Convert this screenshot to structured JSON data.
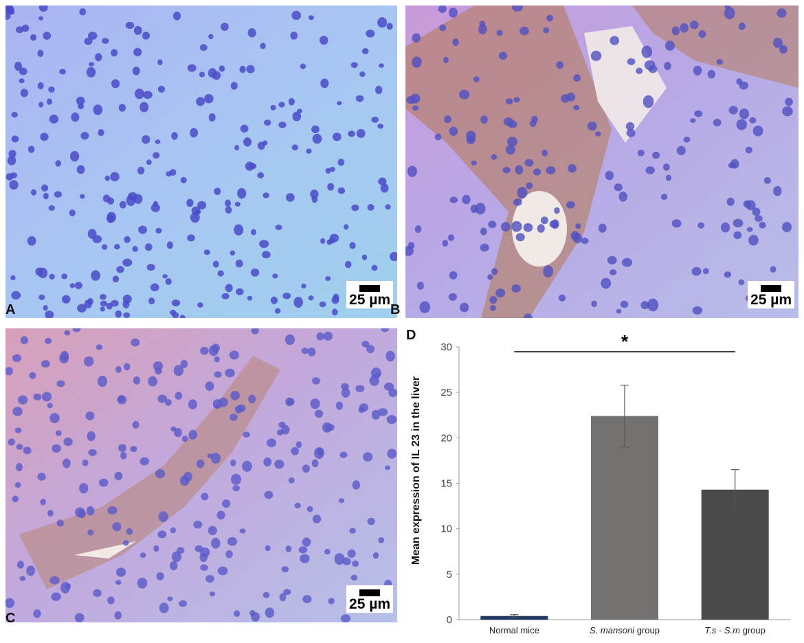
{
  "panels": {
    "A": {
      "letter": "A",
      "scale_label": "25 µm"
    },
    "B": {
      "letter": "B",
      "scale_label": "25 µm"
    },
    "C": {
      "letter": "C",
      "scale_label": "25 µm"
    },
    "D": {
      "letter": "D"
    }
  },
  "colors": {
    "stain_hematoxylin": "#5a5ad8",
    "stain_dab": "#b0602a",
    "bar_normal": "#1f3864",
    "bar_sm": "#767171",
    "bar_ts_sm": "#4a4a4a"
  },
  "chart_data": {
    "type": "bar",
    "categories": [
      "Normal mice",
      "S. mansoni group",
      "T.s - S.m group"
    ],
    "category_parts": [
      [
        {
          "text": "Normal mice",
          "italic": false
        }
      ],
      [
        {
          "text": "S. mansoni",
          "italic": true
        },
        {
          "text": " group",
          "italic": false
        }
      ],
      [
        {
          "text": "T.s - S.m",
          "italic": true
        },
        {
          "text": " group",
          "italic": false
        }
      ]
    ],
    "values": [
      0.4,
      22.4,
      14.3
    ],
    "error": [
      0.15,
      3.4,
      2.2
    ],
    "ylabel": "Mean expression of IL 23 in the liver",
    "ylim": [
      0,
      30
    ],
    "yticks": [
      0,
      5,
      10,
      15,
      20,
      25,
      30
    ],
    "significance": "*",
    "grid": false,
    "legend": "none"
  }
}
